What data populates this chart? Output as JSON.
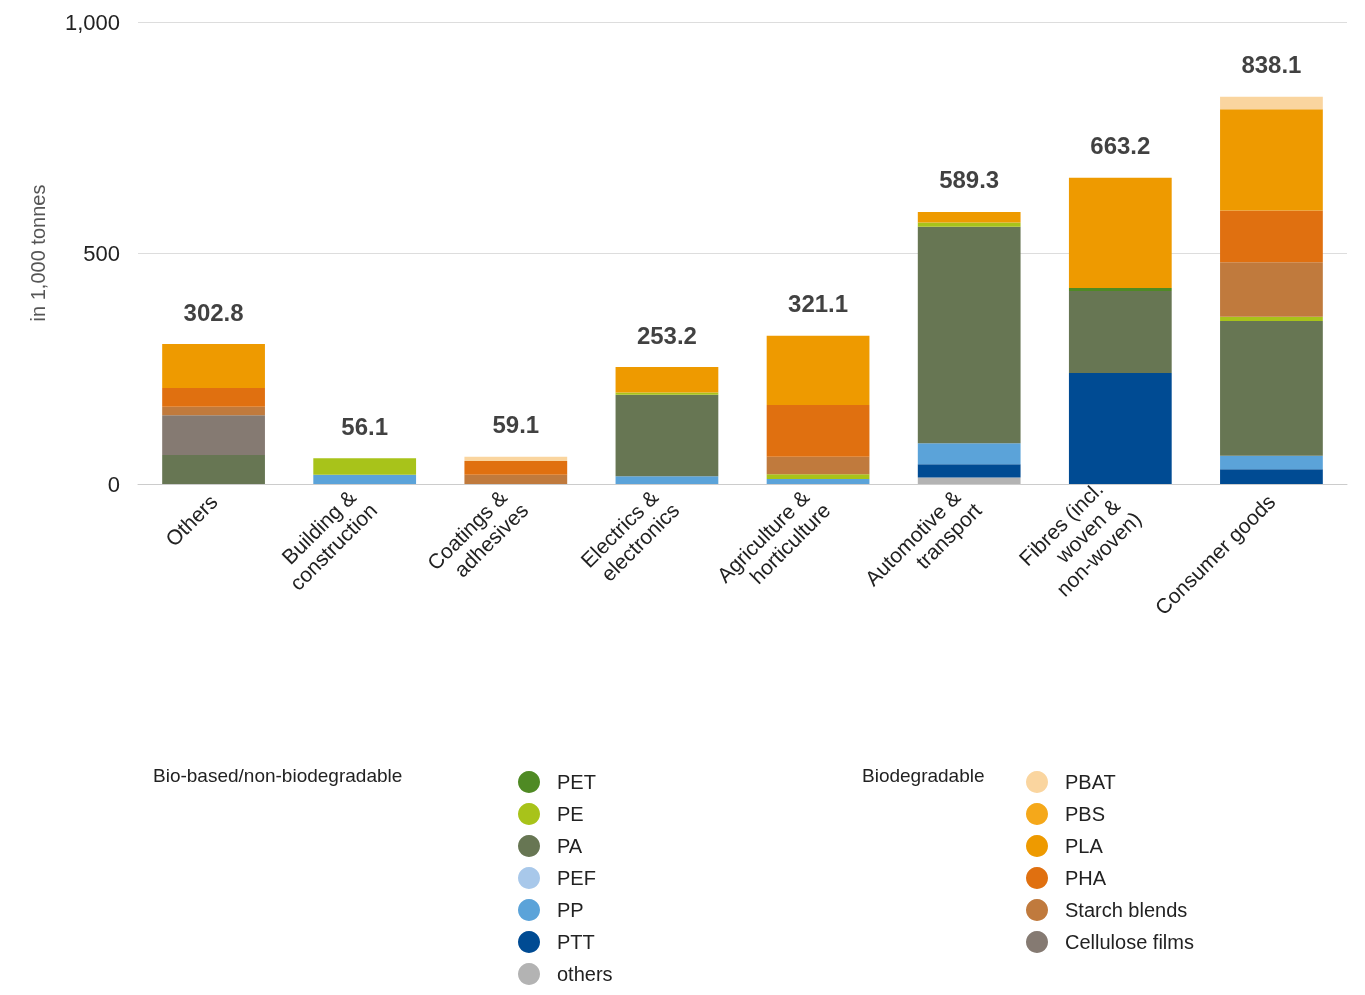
{
  "chart_data": {
    "type": "bar",
    "stacked": true,
    "ylabel": "in 1,000 tonnes",
    "categories": [
      "Others",
      "Building & construction",
      "Coatings & adhesives",
      "Electrics & electronics",
      "Agriculture & horticulture",
      "Automotive & transport",
      "Fibres (incl. woven & non-woven)",
      "Consumer goods"
    ],
    "ylim": [
      0,
      1000
    ],
    "yticks": [
      0,
      500,
      {
        "value": 1000,
        "label": "1,000"
      }
    ],
    "grid": "y",
    "legend": "bottom",
    "legend_title": [
      "Bio-based/non-biodegradable",
      "Biodegradable"
    ],
    "totals": [
      "302.8",
      "56.1",
      "59.1",
      "253.2",
      "321.1",
      "589.3",
      "663.2",
      "838.1"
    ],
    "series": [
      {
        "name": "others",
        "color": "#b3b3b3",
        "values": [
          null,
          null,
          null,
          null,
          null,
          14,
          null,
          null
        ]
      },
      {
        "name": "PTT",
        "color": "#004b93",
        "values": [
          null,
          null,
          null,
          null,
          null,
          29,
          240,
          32
        ]
      },
      {
        "name": "PP",
        "color": "#5ba3d9",
        "values": [
          null,
          20,
          null,
          17,
          11,
          45,
          null,
          29
        ]
      },
      {
        "name": "PEF",
        "color": "#a8c8ea",
        "values": [
          null,
          null,
          null,
          null,
          null,
          null,
          null,
          null
        ]
      },
      {
        "name": "PA",
        "color": "#677653",
        "values": [
          63,
          null,
          null,
          176,
          null,
          469,
          178,
          292
        ]
      },
      {
        "name": "PE",
        "color": "#a8c31a",
        "values": [
          null,
          36,
          null,
          5,
          10,
          9,
          null,
          9
        ]
      },
      {
        "name": "PET",
        "color": "#4f8a24",
        "values": [
          null,
          null,
          null,
          null,
          null,
          null,
          6,
          null
        ]
      },
      {
        "name": "Cellulose films",
        "color": "#857a72",
        "values": [
          86,
          null,
          null,
          null,
          null,
          null,
          null,
          null
        ]
      },
      {
        "name": "Starch blends",
        "color": "#c07a3d",
        "values": [
          18,
          null,
          20,
          null,
          38,
          null,
          null,
          118
        ]
      },
      {
        "name": "PHA",
        "color": "#e07010",
        "values": [
          41,
          null,
          30,
          null,
          112,
          null,
          null,
          112
        ]
      },
      {
        "name": "PLA",
        "color": "#ee9a00",
        "values": [
          95,
          null,
          null,
          55,
          150,
          23,
          239,
          219
        ]
      },
      {
        "name": "PBS",
        "color": "#f5a81a",
        "values": [
          null,
          null,
          null,
          null,
          null,
          null,
          null,
          null
        ]
      },
      {
        "name": "PBAT",
        "color": "#fad59f",
        "values": [
          null,
          null,
          9,
          null,
          null,
          null,
          null,
          27
        ]
      }
    ]
  }
}
